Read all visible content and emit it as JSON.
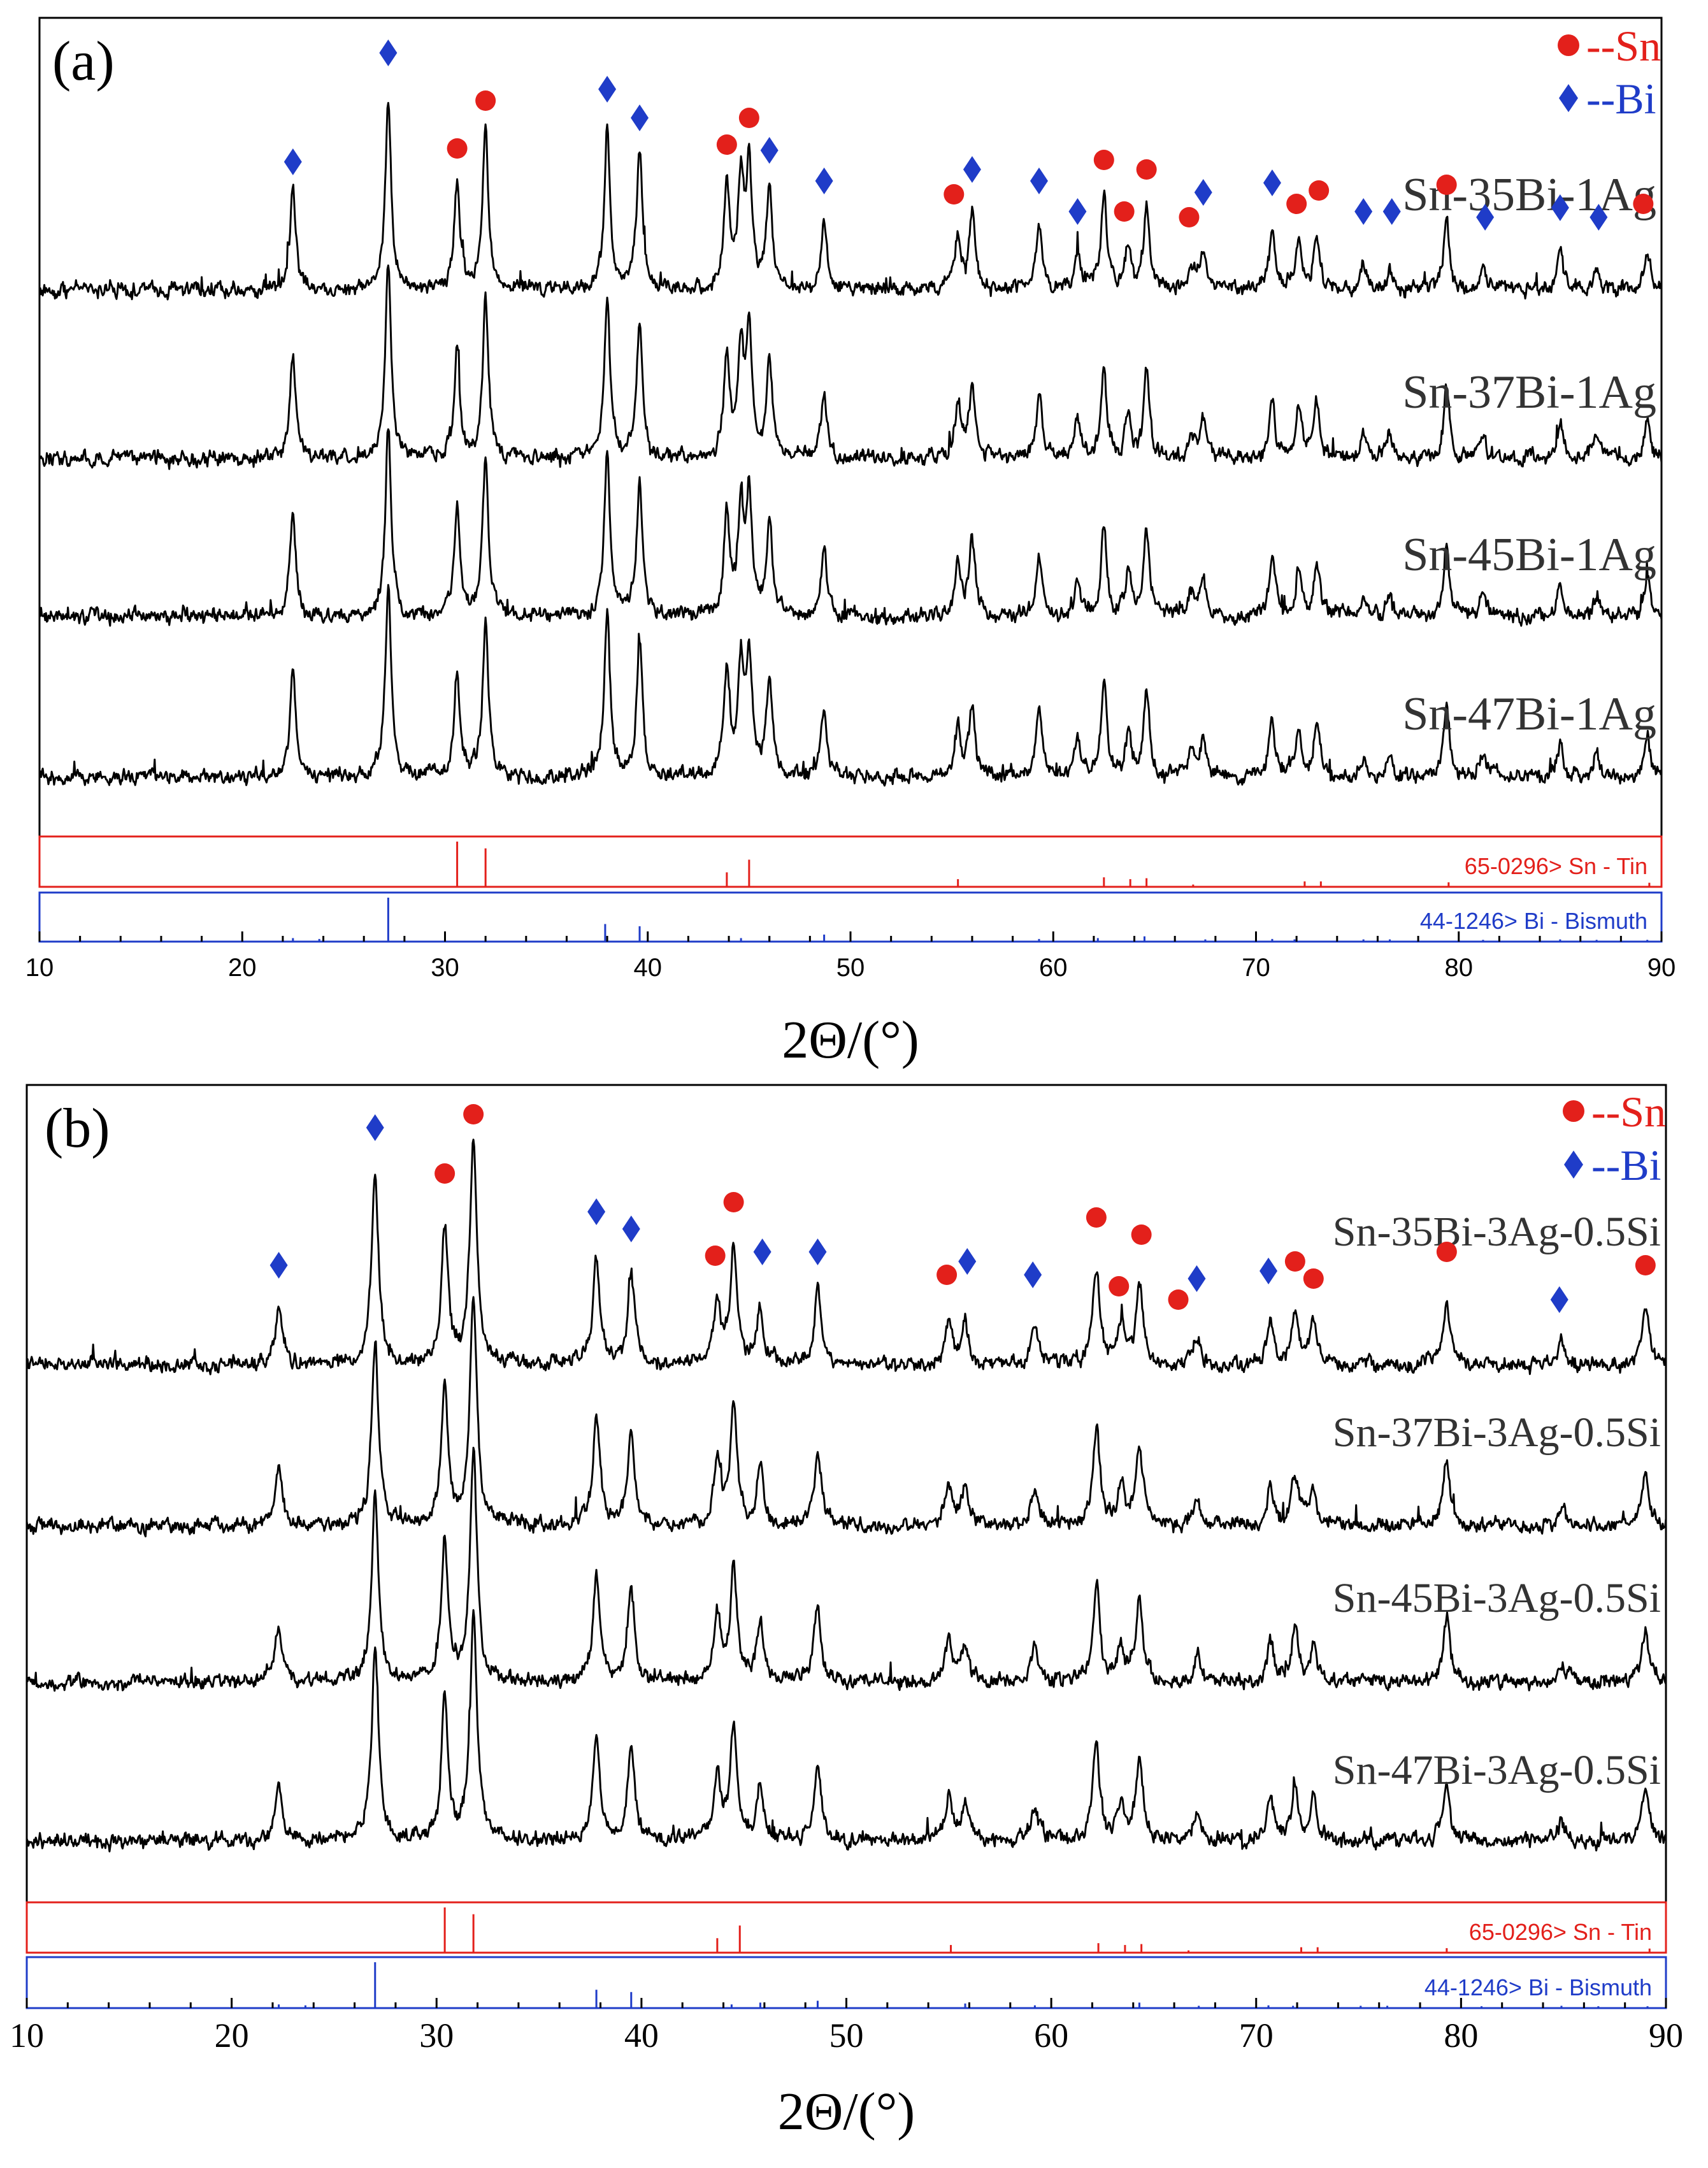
{
  "figure": {
    "description_free": true
  },
  "colors": {
    "sn": "#e3201b",
    "bi": "#1f3cc8",
    "sn_ref": "#e3201b",
    "bi_ref": "#1f3cc8",
    "pattern": "#000000"
  },
  "chart_data": [
    {
      "type": "line",
      "panel_label": "(a)",
      "xlabel": "2Θ/(°)",
      "xlim": [
        10,
        90
      ],
      "xticks": [
        10,
        20,
        30,
        40,
        50,
        60,
        70,
        80,
        90
      ],
      "legend": [
        {
          "marker": "circle",
          "label": "--Sn",
          "color": "#e3201b"
        },
        {
          "marker": "diamond",
          "label": "--Bi",
          "color": "#1f3cc8"
        }
      ],
      "series": [
        {
          "name": "Sn-35Bi-1Ag"
        },
        {
          "name": "Sn-37Bi-1Ag"
        },
        {
          "name": "Sn-45Bi-1Ag"
        },
        {
          "name": "Sn-47Bi-1Ag"
        }
      ],
      "peaks": [
        {
          "x": 22.5,
          "h": 0.55,
          "phase": "Bi"
        },
        {
          "x": 27.2,
          "h": 1.0,
          "phase": "Bi"
        },
        {
          "x": 30.6,
          "h": 0.55,
          "phase": "Sn"
        },
        {
          "x": 32.0,
          "h": 0.82,
          "phase": "Sn"
        },
        {
          "x": 38.0,
          "h": 0.85,
          "phase": "Bi"
        },
        {
          "x": 39.6,
          "h": 0.72,
          "phase": "Bi"
        },
        {
          "x": 43.9,
          "h": 0.55,
          "phase": "Sn"
        },
        {
          "x": 44.6,
          "h": 0.55,
          "phase": null
        },
        {
          "x": 45.0,
          "h": 0.62,
          "phase": "Sn"
        },
        {
          "x": 46.0,
          "h": 0.5,
          "phase": "Bi"
        },
        {
          "x": 48.7,
          "h": 0.36,
          "phase": "Bi"
        },
        {
          "x": 55.3,
          "h": 0.28,
          "phase": "Sn"
        },
        {
          "x": 56.0,
          "h": 0.4,
          "phase": "Bi"
        },
        {
          "x": 59.3,
          "h": 0.35,
          "phase": "Bi"
        },
        {
          "x": 61.2,
          "h": 0.2,
          "phase": "Bi"
        },
        {
          "x": 62.5,
          "h": 0.48,
          "phase": "Sn"
        },
        {
          "x": 63.7,
          "h": 0.22,
          "phase": "Sn"
        },
        {
          "x": 64.6,
          "h": 0.45,
          "phase": "Sn"
        },
        {
          "x": 66.8,
          "h": 0.12,
          "phase": "Sn"
        },
        {
          "x": 67.4,
          "h": 0.2,
          "phase": "Bi"
        },
        {
          "x": 70.8,
          "h": 0.3,
          "phase": "Bi"
        },
        {
          "x": 72.1,
          "h": 0.25,
          "phase": "Sn"
        },
        {
          "x": 73.0,
          "h": 0.28,
          "phase": "Sn"
        },
        {
          "x": 75.3,
          "h": 0.12,
          "phase": "Bi"
        },
        {
          "x": 76.6,
          "h": 0.12,
          "phase": "Bi"
        },
        {
          "x": 79.4,
          "h": 0.38,
          "phase": "Sn"
        },
        {
          "x": 81.2,
          "h": 0.12,
          "phase": "Bi"
        },
        {
          "x": 85.0,
          "h": 0.18,
          "phase": "Bi"
        },
        {
          "x": 86.8,
          "h": 0.12,
          "phase": "Bi"
        },
        {
          "x": 89.3,
          "h": 0.22,
          "phase": "Sn"
        }
      ],
      "reference_sn": {
        "label": "65-0296> Sn - Tin",
        "lines": [
          {
            "x": 30.6,
            "i": 1.0
          },
          {
            "x": 32.0,
            "i": 0.85
          },
          {
            "x": 43.9,
            "i": 0.32
          },
          {
            "x": 45.0,
            "i": 0.6
          },
          {
            "x": 55.3,
            "i": 0.17
          },
          {
            "x": 62.5,
            "i": 0.21
          },
          {
            "x": 63.8,
            "i": 0.17
          },
          {
            "x": 64.6,
            "i": 0.19
          },
          {
            "x": 66.9,
            "i": 0.05
          },
          {
            "x": 72.4,
            "i": 0.12
          },
          {
            "x": 73.2,
            "i": 0.12
          },
          {
            "x": 79.5,
            "i": 0.1
          },
          {
            "x": 89.4,
            "i": 0.09
          }
        ]
      },
      "reference_bi": {
        "label": "44-1246> Bi - Bismuth",
        "lines": [
          {
            "x": 22.5,
            "i": 0.08
          },
          {
            "x": 23.8,
            "i": 0.06
          },
          {
            "x": 27.2,
            "i": 1.0
          },
          {
            "x": 37.9,
            "i": 0.4
          },
          {
            "x": 39.6,
            "i": 0.35
          },
          {
            "x": 44.6,
            "i": 0.08
          },
          {
            "x": 46.0,
            "i": 0.12
          },
          {
            "x": 48.7,
            "i": 0.16
          },
          {
            "x": 56.0,
            "i": 0.1
          },
          {
            "x": 59.3,
            "i": 0.06
          },
          {
            "x": 62.2,
            "i": 0.08
          },
          {
            "x": 64.5,
            "i": 0.12
          },
          {
            "x": 67.5,
            "i": 0.05
          },
          {
            "x": 70.8,
            "i": 0.06
          },
          {
            "x": 71.9,
            "i": 0.05
          },
          {
            "x": 75.3,
            "i": 0.05
          },
          {
            "x": 76.6,
            "i": 0.05
          },
          {
            "x": 81.2,
            "i": 0.04
          },
          {
            "x": 85.0,
            "i": 0.05
          },
          {
            "x": 86.8,
            "i": 0.04
          },
          {
            "x": 89.3,
            "i": 0.04
          }
        ]
      },
      "markers": [
        {
          "x": 22.5,
          "phase": "Bi",
          "level": 0.63
        },
        {
          "x": 27.2,
          "phase": "Bi",
          "level": 1.2
        },
        {
          "x": 30.6,
          "phase": "Sn",
          "level": 0.7
        },
        {
          "x": 32.0,
          "phase": "Sn",
          "level": 0.95
        },
        {
          "x": 38.0,
          "phase": "Bi",
          "level": 1.01
        },
        {
          "x": 39.6,
          "phase": "Bi",
          "level": 0.86
        },
        {
          "x": 43.9,
          "phase": "Sn",
          "level": 0.72
        },
        {
          "x": 45.0,
          "phase": "Sn",
          "level": 0.86
        },
        {
          "x": 46.0,
          "phase": "Bi",
          "level": 0.69
        },
        {
          "x": 48.7,
          "phase": "Bi",
          "level": 0.53
        },
        {
          "x": 55.1,
          "phase": "Sn",
          "level": 0.46
        },
        {
          "x": 56.0,
          "phase": "Bi",
          "level": 0.59
        },
        {
          "x": 59.3,
          "phase": "Bi",
          "level": 0.53
        },
        {
          "x": 61.2,
          "phase": "Bi",
          "level": 0.37
        },
        {
          "x": 62.5,
          "phase": "Sn",
          "level": 0.64
        },
        {
          "x": 63.5,
          "phase": "Sn",
          "level": 0.37
        },
        {
          "x": 64.6,
          "phase": "Sn",
          "level": 0.59
        },
        {
          "x": 66.7,
          "phase": "Sn",
          "level": 0.34
        },
        {
          "x": 67.4,
          "phase": "Bi",
          "level": 0.47
        },
        {
          "x": 70.8,
          "phase": "Bi",
          "level": 0.52
        },
        {
          "x": 72.0,
          "phase": "Sn",
          "level": 0.41
        },
        {
          "x": 73.1,
          "phase": "Sn",
          "level": 0.48
        },
        {
          "x": 75.3,
          "phase": "Bi",
          "level": 0.37
        },
        {
          "x": 76.7,
          "phase": "Bi",
          "level": 0.37
        },
        {
          "x": 79.4,
          "phase": "Sn",
          "level": 0.51
        },
        {
          "x": 81.3,
          "phase": "Bi",
          "level": 0.34
        },
        {
          "x": 85.0,
          "phase": "Bi",
          "level": 0.39
        },
        {
          "x": 86.9,
          "phase": "Bi",
          "level": 0.34
        },
        {
          "x": 89.1,
          "phase": "Sn",
          "level": 0.41
        }
      ]
    },
    {
      "type": "line",
      "panel_label": "(b)",
      "xlabel": "2Θ/(°)",
      "xlim": [
        10,
        90
      ],
      "xticks": [
        10,
        20,
        30,
        40,
        50,
        60,
        70,
        80,
        90
      ],
      "legend": [
        {
          "marker": "circle",
          "label": "--Sn",
          "color": "#e3201b"
        },
        {
          "marker": "diamond",
          "label": "--Bi",
          "color": "#1f3cc8"
        }
      ],
      "series": [
        {
          "name": "Sn-35Bi-3Ag-0.5Si"
        },
        {
          "name": "Sn-37Bi-3Ag-0.5Si"
        },
        {
          "name": "Sn-45Bi-3Ag-0.5Si"
        },
        {
          "name": "Sn-47Bi-3Ag-0.5Si"
        }
      ],
      "peaks": [
        {
          "x": 22.3,
          "h": 0.3,
          "phase": "Bi"
        },
        {
          "x": 27.0,
          "h": 1.0,
          "phase": "Bi"
        },
        {
          "x": 30.4,
          "h": 0.72,
          "phase": "Sn"
        },
        {
          "x": 31.8,
          "h": 1.2,
          "phase": "Sn"
        },
        {
          "x": 37.8,
          "h": 0.55,
          "phase": "Bi"
        },
        {
          "x": 39.5,
          "h": 0.48,
          "phase": "Bi"
        },
        {
          "x": 43.7,
          "h": 0.35,
          "phase": "Sn"
        },
        {
          "x": 44.5,
          "h": 0.6,
          "phase": "Sn"
        },
        {
          "x": 45.8,
          "h": 0.3,
          "phase": "Bi"
        },
        {
          "x": 48.6,
          "h": 0.4,
          "phase": "Bi"
        },
        {
          "x": 55.0,
          "h": 0.22,
          "phase": "Sn"
        },
        {
          "x": 55.8,
          "h": 0.2,
          "phase": "Bi"
        },
        {
          "x": 59.2,
          "h": 0.2,
          "phase": "Bi"
        },
        {
          "x": 62.2,
          "h": 0.5,
          "phase": "Sn"
        },
        {
          "x": 63.4,
          "h": 0.2,
          "phase": "Sn"
        },
        {
          "x": 64.3,
          "h": 0.42,
          "phase": "Sn"
        },
        {
          "x": 67.1,
          "h": 0.15,
          "phase": "Bi"
        },
        {
          "x": 70.7,
          "h": 0.2,
          "phase": "Bi"
        },
        {
          "x": 71.9,
          "h": 0.26,
          "phase": "Sn"
        },
        {
          "x": 72.8,
          "h": 0.2,
          "phase": "Sn"
        },
        {
          "x": 79.3,
          "h": 0.32,
          "phase": "Sn"
        },
        {
          "x": 84.9,
          "h": 0.1,
          "phase": "Bi"
        },
        {
          "x": 89.0,
          "h": 0.28,
          "phase": "Sn"
        }
      ],
      "reference_sn": {
        "label": "65-0296> Sn - Tin",
        "lines": [
          {
            "x": 30.4,
            "i": 1.0
          },
          {
            "x": 31.8,
            "i": 0.85
          },
          {
            "x": 43.7,
            "i": 0.32
          },
          {
            "x": 44.8,
            "i": 0.6
          },
          {
            "x": 55.1,
            "i": 0.17
          },
          {
            "x": 62.3,
            "i": 0.21
          },
          {
            "x": 63.6,
            "i": 0.17
          },
          {
            "x": 64.4,
            "i": 0.19
          },
          {
            "x": 66.7,
            "i": 0.05
          },
          {
            "x": 72.2,
            "i": 0.12
          },
          {
            "x": 73.0,
            "i": 0.12
          },
          {
            "x": 79.3,
            "i": 0.1
          },
          {
            "x": 89.2,
            "i": 0.09
          }
        ]
      },
      "reference_bi": {
        "label": "44-1246> Bi - Bismuth",
        "lines": [
          {
            "x": 22.3,
            "i": 0.08
          },
          {
            "x": 23.6,
            "i": 0.06
          },
          {
            "x": 27.0,
            "i": 1.0
          },
          {
            "x": 37.8,
            "i": 0.4
          },
          {
            "x": 39.5,
            "i": 0.35
          },
          {
            "x": 44.4,
            "i": 0.08
          },
          {
            "x": 45.8,
            "i": 0.12
          },
          {
            "x": 48.6,
            "i": 0.16
          },
          {
            "x": 55.8,
            "i": 0.1
          },
          {
            "x": 59.2,
            "i": 0.06
          },
          {
            "x": 62.0,
            "i": 0.08
          },
          {
            "x": 64.3,
            "i": 0.12
          },
          {
            "x": 67.2,
            "i": 0.05
          },
          {
            "x": 70.6,
            "i": 0.06
          },
          {
            "x": 71.8,
            "i": 0.05
          },
          {
            "x": 75.1,
            "i": 0.05
          },
          {
            "x": 76.4,
            "i": 0.05
          },
          {
            "x": 81.0,
            "i": 0.04
          },
          {
            "x": 84.9,
            "i": 0.05
          },
          {
            "x": 86.7,
            "i": 0.04
          },
          {
            "x": 89.1,
            "i": 0.04
          }
        ]
      },
      "markers": [
        {
          "x": 22.3,
          "phase": "Bi",
          "level": 0.48
        },
        {
          "x": 27.0,
          "phase": "Bi",
          "level": 1.2
        },
        {
          "x": 30.4,
          "phase": "Sn",
          "level": 0.96
        },
        {
          "x": 31.8,
          "phase": "Sn",
          "level": 1.27
        },
        {
          "x": 37.8,
          "phase": "Bi",
          "level": 0.76
        },
        {
          "x": 39.5,
          "phase": "Bi",
          "level": 0.67
        },
        {
          "x": 43.6,
          "phase": "Sn",
          "level": 0.53
        },
        {
          "x": 44.5,
          "phase": "Sn",
          "level": 0.81
        },
        {
          "x": 45.9,
          "phase": "Bi",
          "level": 0.55
        },
        {
          "x": 48.6,
          "phase": "Bi",
          "level": 0.55
        },
        {
          "x": 54.9,
          "phase": "Sn",
          "level": 0.43
        },
        {
          "x": 55.9,
          "phase": "Bi",
          "level": 0.5
        },
        {
          "x": 59.1,
          "phase": "Bi",
          "level": 0.43
        },
        {
          "x": 62.2,
          "phase": "Sn",
          "level": 0.73
        },
        {
          "x": 63.3,
          "phase": "Sn",
          "level": 0.37
        },
        {
          "x": 64.4,
          "phase": "Sn",
          "level": 0.64
        },
        {
          "x": 66.2,
          "phase": "Sn",
          "level": 0.3
        },
        {
          "x": 67.1,
          "phase": "Bi",
          "level": 0.41
        },
        {
          "x": 70.6,
          "phase": "Bi",
          "level": 0.45
        },
        {
          "x": 71.9,
          "phase": "Sn",
          "level": 0.5
        },
        {
          "x": 72.8,
          "phase": "Sn",
          "level": 0.41
        },
        {
          "x": 79.3,
          "phase": "Sn",
          "level": 0.55
        },
        {
          "x": 84.8,
          "phase": "Bi",
          "level": 0.3
        },
        {
          "x": 89.0,
          "phase": "Sn",
          "level": 0.48
        }
      ]
    }
  ]
}
